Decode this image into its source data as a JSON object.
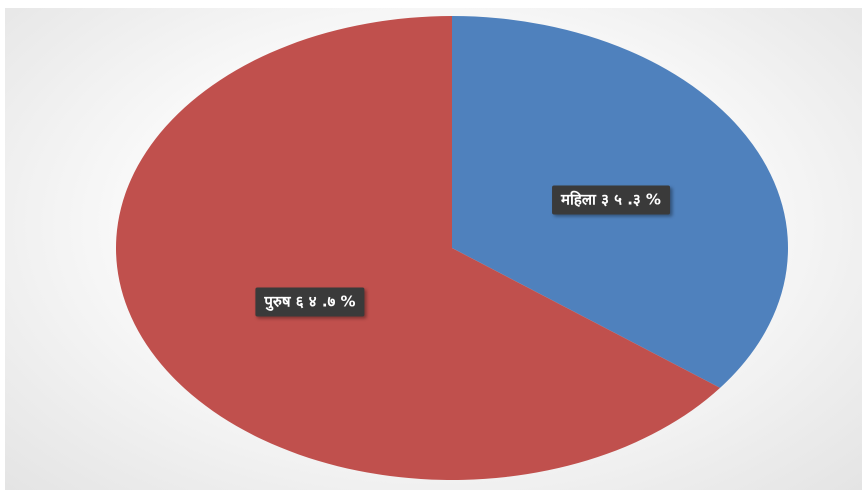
{
  "chart_data": {
    "type": "pie",
    "title": "",
    "slices": [
      {
        "label": "महिला",
        "value": 35.3,
        "display": "महिला ३ ५ .३ %",
        "color": "#4f81bd"
      },
      {
        "label": "पुरुष",
        "value": 64.7,
        "display": "पुरुष ६ ४ .७ %",
        "color": "#c0504d"
      }
    ],
    "start_angle": "12 o'clock",
    "direction": "clockwise",
    "legend": "none"
  }
}
